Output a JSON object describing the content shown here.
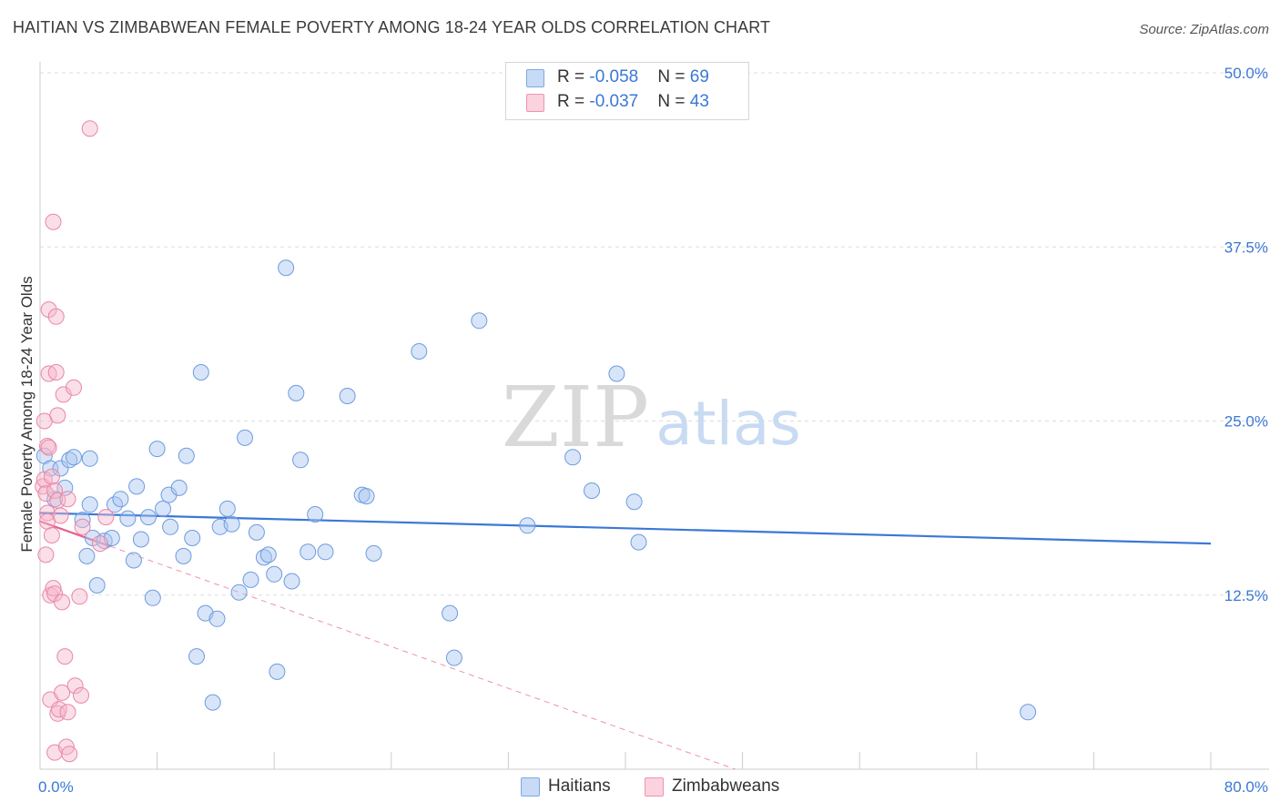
{
  "header": {
    "title": "HAITIAN VS ZIMBABWEAN FEMALE POVERTY AMONG 18-24 YEAR OLDS CORRELATION CHART",
    "source": "Source: ZipAtlas.com"
  },
  "watermark": {
    "zip": "ZIP",
    "atlas": "atlas"
  },
  "legend": {
    "rows": [
      {
        "r_label": "R = ",
        "r_value": "-0.058",
        "n_label": "N = ",
        "n_value": "69",
        "color": "#a9c6f0"
      },
      {
        "r_label": "R = ",
        "r_value": "-0.037",
        "n_label": "N = ",
        "n_value": "43",
        "color": "#f5b8cb"
      }
    ]
  },
  "bottom_legend": [
    {
      "label": "Haitians",
      "color": "#a9c6f0"
    },
    {
      "label": "Zimbabweans",
      "color": "#f5b8cb"
    }
  ],
  "chart_data": {
    "type": "scatter",
    "title": "HAITIAN VS ZIMBABWEAN FEMALE POVERTY AMONG 18-24 YEAR OLDS CORRELATION CHART",
    "xlabel": "",
    "ylabel": "Female Poverty Among 18-24 Year Olds",
    "xlim": [
      0,
      80
    ],
    "ylim": [
      0,
      50
    ],
    "x_tick_labels": [
      "0.0%",
      "80.0%"
    ],
    "y_ticks": [
      12.5,
      25.0,
      37.5,
      50.0
    ],
    "y_tick_labels": [
      "12.5%",
      "25.0%",
      "37.5%",
      "50.0%"
    ],
    "grid": "horizontal dashed",
    "colors": {
      "haitians": "#3b78d6",
      "zimbabweans": "#e8628e",
      "haitians_fill": "#a9c6f0",
      "zimbabweans_fill": "#f5b8cb"
    },
    "series": [
      {
        "name": "Haitians",
        "points": [
          [
            0.3,
            22.5
          ],
          [
            0.7,
            21.6
          ],
          [
            1.0,
            19.4
          ],
          [
            1.4,
            21.6
          ],
          [
            1.7,
            20.2
          ],
          [
            2.0,
            22.2
          ],
          [
            2.3,
            22.4
          ],
          [
            2.9,
            17.9
          ],
          [
            3.2,
            15.3
          ],
          [
            3.4,
            19.0
          ],
          [
            3.4,
            22.3
          ],
          [
            3.6,
            16.6
          ],
          [
            3.9,
            13.2
          ],
          [
            4.4,
            16.4
          ],
          [
            4.9,
            16.6
          ],
          [
            5.1,
            19.0
          ],
          [
            5.5,
            19.4
          ],
          [
            6.0,
            18.0
          ],
          [
            6.4,
            15.0
          ],
          [
            6.6,
            20.3
          ],
          [
            6.9,
            16.5
          ],
          [
            7.4,
            18.1
          ],
          [
            7.7,
            12.3
          ],
          [
            8.0,
            23.0
          ],
          [
            8.4,
            18.7
          ],
          [
            8.8,
            19.7
          ],
          [
            8.9,
            17.4
          ],
          [
            9.5,
            20.2
          ],
          [
            9.8,
            15.3
          ],
          [
            10.0,
            22.5
          ],
          [
            10.4,
            16.6
          ],
          [
            10.7,
            8.1
          ],
          [
            11.0,
            28.5
          ],
          [
            11.3,
            11.2
          ],
          [
            11.8,
            4.8
          ],
          [
            12.1,
            10.8
          ],
          [
            12.3,
            17.4
          ],
          [
            12.8,
            18.7
          ],
          [
            13.1,
            17.6
          ],
          [
            13.6,
            12.7
          ],
          [
            14.0,
            23.8
          ],
          [
            14.4,
            13.6
          ],
          [
            14.8,
            17.0
          ],
          [
            15.3,
            15.2
          ],
          [
            15.6,
            15.4
          ],
          [
            16.0,
            14.0
          ],
          [
            16.2,
            7.0
          ],
          [
            16.8,
            36.0
          ],
          [
            17.2,
            13.5
          ],
          [
            17.5,
            27.0
          ],
          [
            17.8,
            22.2
          ],
          [
            18.3,
            15.6
          ],
          [
            18.8,
            18.3
          ],
          [
            19.5,
            15.6
          ],
          [
            21.0,
            26.8
          ],
          [
            22.0,
            19.7
          ],
          [
            22.3,
            19.6
          ],
          [
            22.8,
            15.5
          ],
          [
            25.9,
            30.0
          ],
          [
            28.0,
            11.2
          ],
          [
            28.3,
            8.0
          ],
          [
            30.0,
            32.2
          ],
          [
            33.3,
            17.5
          ],
          [
            36.4,
            22.4
          ],
          [
            37.7,
            20.0
          ],
          [
            39.4,
            28.4
          ],
          [
            40.6,
            19.2
          ],
          [
            40.9,
            16.3
          ],
          [
            67.5,
            4.1
          ]
        ]
      },
      {
        "name": "Zimbabweans",
        "points": [
          [
            0.2,
            20.3
          ],
          [
            0.3,
            25.0
          ],
          [
            0.3,
            20.8
          ],
          [
            0.4,
            19.8
          ],
          [
            0.4,
            15.4
          ],
          [
            0.5,
            23.2
          ],
          [
            0.5,
            18.4
          ],
          [
            0.5,
            17.8
          ],
          [
            0.6,
            33.0
          ],
          [
            0.6,
            28.4
          ],
          [
            0.7,
            12.5
          ],
          [
            0.7,
            5.0
          ],
          [
            0.8,
            21.0
          ],
          [
            0.8,
            16.8
          ],
          [
            0.9,
            39.3
          ],
          [
            0.9,
            13.0
          ],
          [
            1.0,
            20.0
          ],
          [
            1.0,
            12.6
          ],
          [
            1.0,
            1.2
          ],
          [
            1.1,
            32.5
          ],
          [
            1.1,
            28.5
          ],
          [
            1.2,
            25.4
          ],
          [
            1.2,
            19.3
          ],
          [
            1.2,
            4.0
          ],
          [
            1.3,
            4.3
          ],
          [
            1.4,
            18.2
          ],
          [
            1.5,
            5.5
          ],
          [
            1.5,
            12.0
          ],
          [
            1.6,
            26.9
          ],
          [
            1.7,
            8.1
          ],
          [
            1.8,
            1.6
          ],
          [
            1.9,
            19.4
          ],
          [
            1.9,
            4.1
          ],
          [
            2.0,
            1.1
          ],
          [
            2.3,
            27.4
          ],
          [
            2.4,
            6.0
          ],
          [
            2.7,
            12.4
          ],
          [
            2.8,
            5.3
          ],
          [
            2.9,
            17.4
          ],
          [
            3.4,
            46.0
          ],
          [
            4.1,
            16.2
          ],
          [
            4.5,
            18.1
          ],
          [
            0.6,
            23.1
          ]
        ]
      }
    ],
    "trendlines": [
      {
        "series": "Haitians",
        "from": [
          0,
          18.4
        ],
        "to": [
          80,
          16.2
        ],
        "style": "solid"
      },
      {
        "series": "Zimbabweans",
        "from": [
          0,
          17.8
        ],
        "to": [
          4.8,
          16.0
        ],
        "style": "solid"
      },
      {
        "series": "Zimbabweans",
        "from": [
          4.8,
          16.0
        ],
        "to": [
          47.5,
          0.0
        ],
        "style": "dashed"
      }
    ]
  }
}
